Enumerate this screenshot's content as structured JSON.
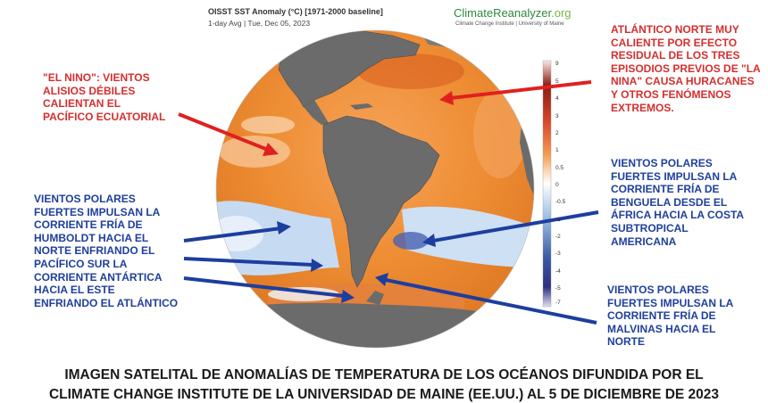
{
  "header": {
    "title": "OISST SST Anomaly (°C) [1971-2000 baseline]",
    "subtitle": "1-day Avg | Tue, Dec 05, 2023",
    "brand_main": "ClimateReanalyzer",
    "brand_tld": ".org",
    "brand_sub": "Climate Change Institute | University of Maine"
  },
  "colorbar": {
    "ticks": [
      "5",
      "4",
      "3",
      "2",
      "1",
      "0.5",
      "0",
      "-0.5",
      "-1",
      "-2",
      "-3",
      "-4",
      "-5"
    ],
    "top_tick": "9",
    "bottom_tick": "-7"
  },
  "annotations": {
    "el_nino": "\"EL NINO\": VIENTOS\nALISIOS DÉBILES\nCALIENTAN EL\nPACÍFICO ECUATORIAL",
    "atlantico_norte": "ATLÁNTICO NORTE MUY\nCALIENTE POR EFECTO\nRESIDUAL DE LOS TRES\nEPISODIOS PREVIOS DE \"LA\nNINA\" CAUSA HURACANES\nY OTROS FENÓMENOS\nEXTREMOS.",
    "humboldt": "VIENTOS POLARES\nFUERTES IMPULSAN LA\nCORRIENTE FRÍA DE\nHUMBOLDT HACIA EL\nNORTE ENFRIANDO EL\nPACÍFICO SUR LA\nCORRIENTE ANTÁRTICA\nHACIA EL ESTE\nENFRIANDO EL ATLÁNTICO",
    "benguela": "VIENTOS POLARES\nFUERTES IMPULSAN LA\nCORRIENTE FRÍA DE\nBENGUELA DESDE EL\nÁFRICA HACIA LA COSTA\nSUBTROPICAL\nAMERICANA",
    "malvinas": "VIENTOS POLARES\nFUERTES IMPULSAN LA\nCORRIENTE FRÍA DE\nMALVINAS HACIA EL\nNORTE"
  },
  "caption": {
    "line1": "IMAGEN SATELITAL DE ANOMALÍAS DE TEMPERATURA DE LOS OCÉANOS DIFUNDIDA POR EL",
    "line2": "CLIMATE CHANGE INSTITUTE DE LA UNIVERSIDAD DE MAINE (EE.UU.) AL 5 DE DICIEMBRE DE 2023"
  },
  "colors": {
    "annotation_red": "#d32f2f",
    "annotation_blue": "#1f3f9c",
    "warm_anomaly": "#e8892e",
    "cold_anomaly": "#c8dcf2",
    "land": "#6b6b6b"
  }
}
